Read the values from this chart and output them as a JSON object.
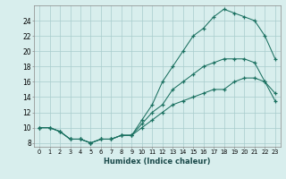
{
  "xlabel": "Humidex (Indice chaleur)",
  "bg_color": "#d8eeed",
  "grid_color": "#a8cccc",
  "line_color": "#1a7060",
  "xlim": [
    -0.5,
    23.5
  ],
  "ylim": [
    7.5,
    26.0
  ],
  "xticks": [
    0,
    1,
    2,
    3,
    4,
    5,
    6,
    7,
    8,
    9,
    10,
    11,
    12,
    13,
    14,
    15,
    16,
    17,
    18,
    19,
    20,
    21,
    22,
    23
  ],
  "yticks": [
    8,
    10,
    12,
    14,
    16,
    18,
    20,
    22,
    24
  ],
  "line1_x": [
    0,
    1,
    2,
    3,
    4,
    5,
    6,
    7,
    8,
    9,
    10,
    11,
    12,
    13,
    14,
    15,
    16,
    17,
    18,
    19,
    20,
    21,
    22,
    23
  ],
  "line1_y": [
    10,
    10,
    9.5,
    8.5,
    8.5,
    8,
    8.5,
    8.5,
    9,
    9,
    10,
    11,
    12,
    13,
    13.5,
    14,
    14.5,
    15,
    15,
    16,
    16.5,
    16.5,
    16,
    14.5
  ],
  "line2_x": [
    0,
    1,
    2,
    3,
    4,
    5,
    6,
    7,
    8,
    9,
    10,
    11,
    12,
    13,
    14,
    15,
    16,
    17,
    18,
    19,
    20,
    21,
    22,
    23
  ],
  "line2_y": [
    10,
    10,
    9.5,
    8.5,
    8.5,
    8,
    8.5,
    8.5,
    9,
    9,
    10.5,
    12,
    13,
    15,
    16,
    17,
    18,
    18.5,
    19,
    19,
    19,
    18.5,
    16,
    13.5
  ],
  "line3_x": [
    0,
    1,
    2,
    3,
    4,
    5,
    6,
    7,
    8,
    9,
    10,
    11,
    12,
    13,
    14,
    15,
    16,
    17,
    18,
    19,
    20,
    21,
    22,
    23
  ],
  "line3_y": [
    10,
    10,
    9.5,
    8.5,
    8.5,
    8,
    8.5,
    8.5,
    9,
    9,
    11,
    13,
    16,
    18,
    20,
    22,
    23,
    24.5,
    25.5,
    25,
    24.5,
    24,
    22,
    19
  ]
}
